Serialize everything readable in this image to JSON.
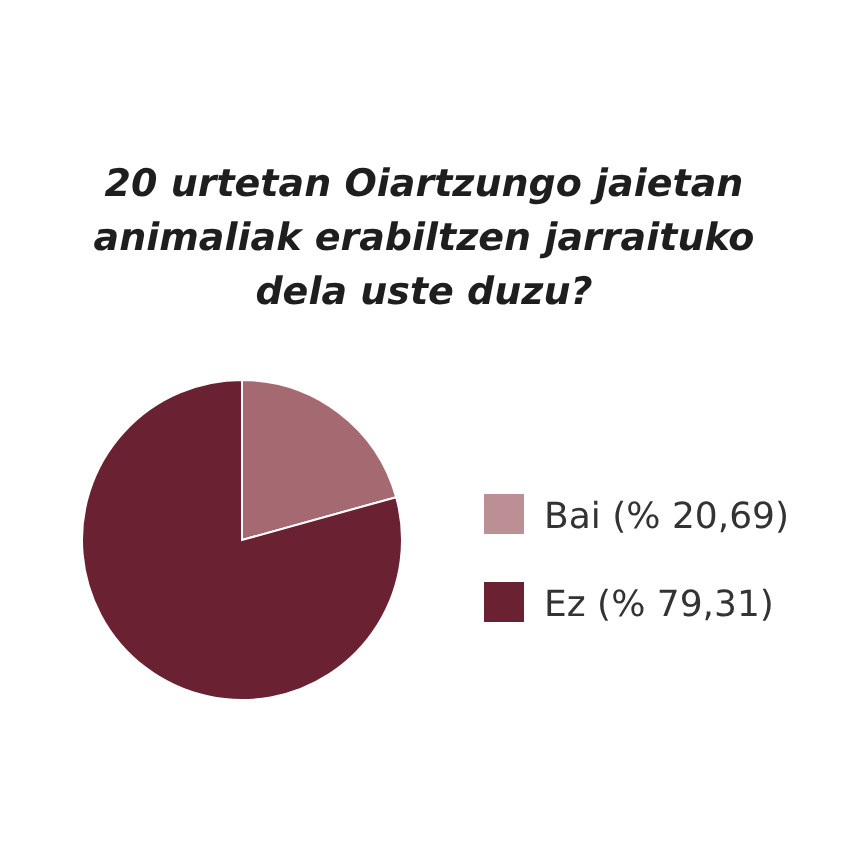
{
  "chart_data": {
    "type": "pie",
    "title": "20 urtetan Oiartzungo jaietan animaliak erabiltzen jarraituko dela uste duzu?",
    "categories": [
      "Bai (% 20,69)",
      "Ez (% 79,31)"
    ],
    "values": [
      20.69,
      79.31
    ],
    "colors": [
      "#a56a71",
      "#6a2132"
    ],
    "legend": "right"
  }
}
